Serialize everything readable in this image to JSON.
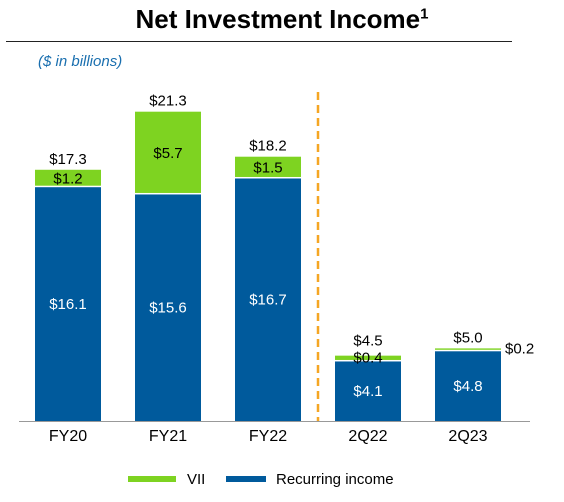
{
  "title": "Net Investment Income",
  "title_footnote": "1",
  "subtitle": "($ in billions)",
  "colors": {
    "vii": "#7ed321",
    "recurring": "#005a9c",
    "divider": "#f5a623",
    "axis": "#999999"
  },
  "chart_data": {
    "type": "bar",
    "stacked": true,
    "categories": [
      "FY20",
      "FY21",
      "FY22",
      "2Q22",
      "2Q23"
    ],
    "series": [
      {
        "name": "Recurring income",
        "values": [
          16.1,
          15.6,
          16.7,
          4.1,
          4.8
        ],
        "labels": [
          "$16.1",
          "$15.6",
          "$16.7",
          "$4.1",
          "$4.8"
        ]
      },
      {
        "name": "VII",
        "values": [
          1.2,
          5.7,
          1.5,
          0.4,
          0.2
        ],
        "labels": [
          "$1.2",
          "$5.7",
          "$1.5",
          "$0.4",
          "$0.2"
        ]
      }
    ],
    "totals": [
      17.3,
      21.3,
      18.2,
      4.5,
      5.0
    ],
    "total_labels": [
      "$17.3",
      "$21.3",
      "$18.2",
      "$4.5",
      "$5.0"
    ],
    "legend": [
      "VII",
      "Recurring income"
    ],
    "legend_position": "bottom",
    "divider_after_category": "FY22",
    "ylim": [
      0,
      23
    ],
    "grid": false
  }
}
